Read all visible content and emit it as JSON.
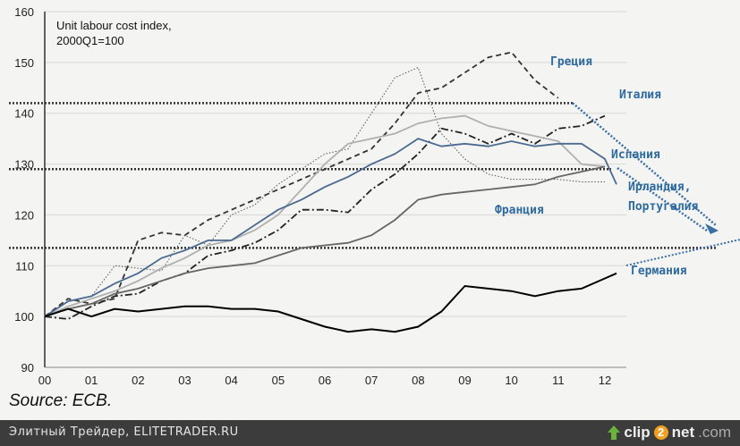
{
  "chart_data": {
    "type": "line",
    "title": "Unit labour cost index,",
    "subtitle": "2000Q1=100",
    "xlabel": "",
    "ylabel": "",
    "xlim": [
      0,
      12.5
    ],
    "ylim": [
      90,
      160
    ],
    "x_tick_labels": [
      "00",
      "01",
      "02",
      "03",
      "04",
      "05",
      "06",
      "07",
      "08",
      "09",
      "10",
      "11",
      "12"
    ],
    "y_ticks": [
      90,
      100,
      110,
      120,
      130,
      140,
      150,
      160
    ],
    "grid": true,
    "x": [
      0,
      0.5,
      1,
      1.5,
      2,
      2.5,
      3,
      3.5,
      4,
      4.5,
      5,
      5.5,
      6,
      6.5,
      7,
      7.5,
      8,
      8.5,
      9,
      9.5,
      10,
      10.5,
      11,
      11.5,
      12,
      12.25
    ],
    "series": [
      {
        "name": "Греция",
        "style": "dashed",
        "color": "#333333",
        "values": [
          100,
          103.5,
          102.5,
          103.5,
          115,
          116.5,
          116,
          119,
          121,
          123,
          125,
          127,
          129,
          131,
          133,
          138,
          144,
          145,
          148,
          151,
          152,
          146.5,
          143,
          null,
          null,
          null
        ]
      },
      {
        "name": "Ирландия",
        "style": "dotted",
        "color": "#555555",
        "values": [
          100,
          103,
          104,
          110,
          109.5,
          109,
          116,
          114,
          120,
          122,
          126,
          129,
          132,
          133,
          140,
          147,
          149,
          136,
          131,
          128,
          127,
          127,
          127,
          126.5,
          126.5,
          null
        ]
      },
      {
        "name": "Италия",
        "style": "dashdot",
        "color": "#222222",
        "values": [
          100,
          99.5,
          102,
          104,
          104.5,
          107,
          108.5,
          112,
          113,
          114.5,
          117,
          121,
          121,
          120.5,
          125,
          128,
          132,
          137,
          136,
          134,
          136,
          134,
          137,
          137.5,
          139.5,
          null
        ]
      },
      {
        "name": "Испания",
        "style": "solid",
        "color": "#b0b0b0",
        "values": [
          100,
          102,
          103.5,
          105,
          107,
          109.5,
          111.5,
          114,
          115,
          117,
          120,
          125,
          130,
          134,
          135,
          136,
          138,
          139,
          139.5,
          137.5,
          136.5,
          135.5,
          134.5,
          130,
          129.5,
          null
        ]
      },
      {
        "name": "Португалия",
        "style": "solid",
        "color": "#4a6a8f",
        "values": [
          100,
          103,
          104,
          106.5,
          108.5,
          111.5,
          113,
          115,
          115,
          118,
          121,
          123,
          125.5,
          127.5,
          130,
          132,
          135,
          133.5,
          134,
          133.5,
          134.5,
          133.5,
          134,
          134,
          131,
          126
        ]
      },
      {
        "name": "Франция",
        "style": "solid",
        "color": "#666666",
        "values": [
          100,
          101.5,
          102.5,
          104.5,
          105.5,
          107,
          108.5,
          109.5,
          110,
          110.5,
          112,
          113.5,
          114,
          114.5,
          116,
          119,
          123,
          124,
          124.5,
          125,
          125.5,
          126,
          127.5,
          128.5,
          129.5,
          null
        ]
      },
      {
        "name": "Германия",
        "style": "solid",
        "color": "#000000",
        "values": [
          100,
          101.5,
          100,
          101.5,
          101,
          101.5,
          102,
          102,
          101.5,
          101.5,
          101,
          99.5,
          98,
          97,
          97.5,
          97,
          98,
          101,
          106,
          105.5,
          105,
          104,
          105,
          105.5,
          107.5,
          108.5
        ]
      }
    ],
    "annotations": [
      {
        "text": "Греция"
      },
      {
        "text": "Италия"
      },
      {
        "text": "Испания"
      },
      {
        "text": "Ирландия,"
      },
      {
        "text": "Португалия"
      },
      {
        "text": "Франция"
      },
      {
        "text": "Германия"
      }
    ],
    "reference_levels": [
      142,
      129,
      113.5
    ]
  },
  "source": "Source: ECB.",
  "footer": {
    "left_text": "Элитный Трейдер, ELITETRADER.RU",
    "brand_pre": "clip",
    "brand_two": "2",
    "brand_post": "net",
    "brand_dom": ".com"
  }
}
